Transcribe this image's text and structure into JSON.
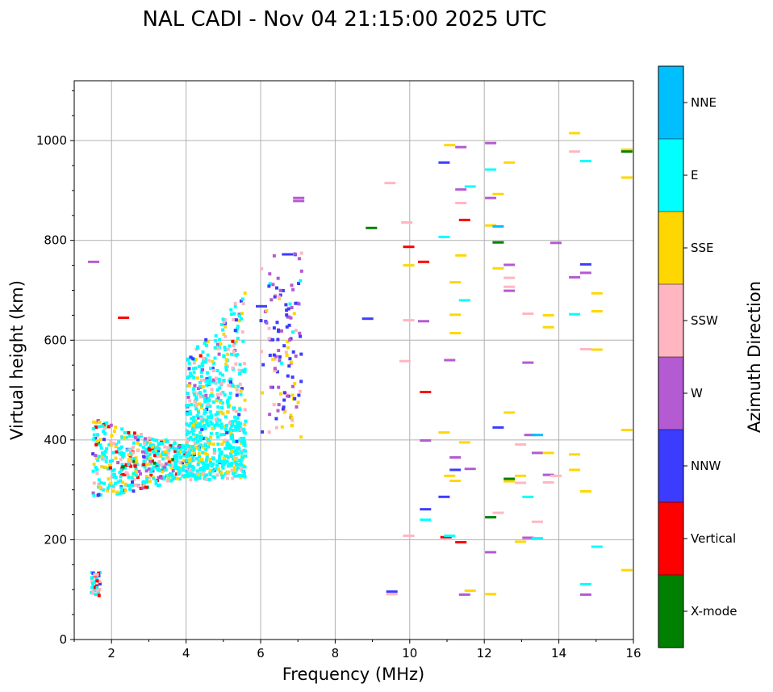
{
  "chart_data": {
    "type": "scatter",
    "title": "NAL CADI - Nov 04 21:15:00 2025 UTC",
    "xlabel": "Frequency (MHz)",
    "ylabel": "Virtual height (km)",
    "xlim": [
      1,
      16
    ],
    "ylim": [
      0,
      1120
    ],
    "x_ticks": [
      2,
      4,
      6,
      8,
      10,
      12,
      14,
      16
    ],
    "y_ticks": [
      0,
      200,
      400,
      600,
      800,
      1000
    ],
    "grid": true,
    "colorbar": {
      "label": "Azimuth Direction",
      "categories": [
        {
          "name": "X-mode",
          "color": "#008000"
        },
        {
          "name": "Vertical",
          "color": "#ff0000"
        },
        {
          "name": "NNW",
          "color": "#3c3cff"
        },
        {
          "name": "W",
          "color": "#b45ad2"
        },
        {
          "name": "SSW",
          "color": "#ffb6c1"
        },
        {
          "name": "SSE",
          "color": "#ffd700"
        },
        {
          "name": "E",
          "color": "#00ffff"
        },
        {
          "name": "NNE",
          "color": "#00bfff"
        }
      ]
    },
    "clusters": [
      {
        "name": "low-E",
        "x": [
          1.45,
          1.7
        ],
        "y": [
          88,
          135
        ],
        "count": 40,
        "mix": {
          "Vertical": 3,
          "E": 4,
          "SSW": 3,
          "NNW": 1
        }
      },
      {
        "name": "F-trace-lower",
        "x": [
          1.5,
          4.2
        ],
        "y": [
          265,
          440
        ],
        "count": 520,
        "mix": {
          "E": 10,
          "SSE": 4,
          "SSW": 3,
          "Vertical": 2,
          "W": 1,
          "NNW": 1,
          "X-mode": 0.4
        }
      },
      {
        "name": "F-band",
        "x": [
          4.0,
          5.6
        ],
        "y": [
          320,
          440
        ],
        "count": 380,
        "mix": {
          "E": 12,
          "SSE": 3,
          "SSW": 1,
          "NNW": 0.6
        }
      },
      {
        "name": "F-spread",
        "x": [
          4.0,
          5.6
        ],
        "y": [
          440,
          700
        ],
        "count": 300,
        "mix": {
          "E": 10,
          "SSE": 2,
          "SSW": 3,
          "W": 1,
          "NNW": 1,
          "Vertical": 0.4
        }
      },
      {
        "name": "oblique-6",
        "x": [
          6.0,
          7.1
        ],
        "y": [
          405,
          780
        ],
        "count": 130,
        "mix": {
          "NNW": 6,
          "W": 4,
          "SSE": 1.5,
          "SSW": 1.5,
          "E": 0.5
        }
      }
    ],
    "segments": [
      {
        "x": 1.5,
        "y": 757,
        "color": "W"
      },
      {
        "x": 2.3,
        "y": 645,
        "color": "Vertical"
      },
      {
        "x": 6.0,
        "y": 668,
        "color": "NNW"
      },
      {
        "x": 6.7,
        "y": 772,
        "color": "NNW"
      },
      {
        "x": 7.0,
        "y": 885,
        "color": "W"
      },
      {
        "x": 7.0,
        "y": 879,
        "color": "W"
      },
      {
        "x": 8.95,
        "y": 825,
        "color": "X-mode"
      },
      {
        "x": 8.85,
        "y": 643,
        "color": "NNW"
      },
      {
        "x": 9.45,
        "y": 915,
        "color": "SSW"
      },
      {
        "x": 9.5,
        "y": 96,
        "color": "NNW"
      },
      {
        "x": 9.5,
        "y": 91,
        "color": "SSW"
      },
      {
        "x": 9.9,
        "y": 836,
        "color": "SSW"
      },
      {
        "x": 9.95,
        "y": 787,
        "color": "Vertical"
      },
      {
        "x": 9.95,
        "y": 750,
        "color": "SSE"
      },
      {
        "x": 9.95,
        "y": 640,
        "color": "SSW"
      },
      {
        "x": 9.95,
        "y": 208,
        "color": "SSW"
      },
      {
        "x": 9.85,
        "y": 558,
        "color": "SSW"
      },
      {
        "x": 10.35,
        "y": 757,
        "color": "Vertical"
      },
      {
        "x": 10.35,
        "y": 638,
        "color": "W"
      },
      {
        "x": 10.4,
        "y": 496,
        "color": "Vertical"
      },
      {
        "x": 10.4,
        "y": 399,
        "color": "W"
      },
      {
        "x": 10.4,
        "y": 261,
        "color": "NNW"
      },
      {
        "x": 10.4,
        "y": 240,
        "color": "E"
      },
      {
        "x": 10.9,
        "y": 956,
        "color": "NNW"
      },
      {
        "x": 10.9,
        "y": 807,
        "color": "E"
      },
      {
        "x": 10.9,
        "y": 415,
        "color": "SSE"
      },
      {
        "x": 10.9,
        "y": 286,
        "color": "NNW"
      },
      {
        "x": 10.95,
        "y": 205,
        "color": "Vertical"
      },
      {
        "x": 11.05,
        "y": 991,
        "color": "SSE"
      },
      {
        "x": 11.05,
        "y": 560,
        "color": "W"
      },
      {
        "x": 11.05,
        "y": 328,
        "color": "SSE"
      },
      {
        "x": 11.05,
        "y": 208,
        "color": "E"
      },
      {
        "x": 11.2,
        "y": 716,
        "color": "SSE"
      },
      {
        "x": 11.2,
        "y": 651,
        "color": "SSE"
      },
      {
        "x": 11.2,
        "y": 614,
        "color": "SSE"
      },
      {
        "x": 11.2,
        "y": 365,
        "color": "W"
      },
      {
        "x": 11.2,
        "y": 340,
        "color": "NNW"
      },
      {
        "x": 11.2,
        "y": 318,
        "color": "SSE"
      },
      {
        "x": 11.35,
        "y": 987,
        "color": "W"
      },
      {
        "x": 11.35,
        "y": 902,
        "color": "W"
      },
      {
        "x": 11.35,
        "y": 875,
        "color": "SSW"
      },
      {
        "x": 11.35,
        "y": 770,
        "color": "SSE"
      },
      {
        "x": 11.35,
        "y": 195,
        "color": "Vertical"
      },
      {
        "x": 11.45,
        "y": 841,
        "color": "Vertical"
      },
      {
        "x": 11.45,
        "y": 680,
        "color": "E"
      },
      {
        "x": 11.45,
        "y": 395,
        "color": "SSE"
      },
      {
        "x": 11.45,
        "y": 90,
        "color": "W"
      },
      {
        "x": 11.6,
        "y": 908,
        "color": "E"
      },
      {
        "x": 11.6,
        "y": 342,
        "color": "W"
      },
      {
        "x": 11.6,
        "y": 98,
        "color": "SSE"
      },
      {
        "x": 12.15,
        "y": 995,
        "color": "W"
      },
      {
        "x": 12.15,
        "y": 942,
        "color": "E"
      },
      {
        "x": 12.15,
        "y": 885,
        "color": "W"
      },
      {
        "x": 12.15,
        "y": 830,
        "color": "SSE"
      },
      {
        "x": 12.15,
        "y": 245,
        "color": "X-mode"
      },
      {
        "x": 12.15,
        "y": 175,
        "color": "W"
      },
      {
        "x": 12.15,
        "y": 91,
        "color": "SSE"
      },
      {
        "x": 12.35,
        "y": 893,
        "color": "SSE"
      },
      {
        "x": 12.35,
        "y": 828,
        "color": "NNE"
      },
      {
        "x": 12.35,
        "y": 796,
        "color": "X-mode"
      },
      {
        "x": 12.35,
        "y": 744,
        "color": "SSE"
      },
      {
        "x": 12.35,
        "y": 425,
        "color": "NNW"
      },
      {
        "x": 12.35,
        "y": 254,
        "color": "SSW"
      },
      {
        "x": 12.65,
        "y": 956,
        "color": "SSE"
      },
      {
        "x": 12.65,
        "y": 751,
        "color": "W"
      },
      {
        "x": 12.65,
        "y": 725,
        "color": "SSW"
      },
      {
        "x": 12.65,
        "y": 707,
        "color": "SSW"
      },
      {
        "x": 12.65,
        "y": 699,
        "color": "W"
      },
      {
        "x": 12.65,
        "y": 455,
        "color": "SSE"
      },
      {
        "x": 12.65,
        "y": 322,
        "color": "X-mode"
      },
      {
        "x": 12.65,
        "y": 317,
        "color": "SSE"
      },
      {
        "x": 12.95,
        "y": 391,
        "color": "SSW"
      },
      {
        "x": 12.95,
        "y": 328,
        "color": "SSE"
      },
      {
        "x": 12.95,
        "y": 314,
        "color": "SSW"
      },
      {
        "x": 12.95,
        "y": 196,
        "color": "SSE"
      },
      {
        "x": 13.15,
        "y": 653,
        "color": "SSW"
      },
      {
        "x": 13.15,
        "y": 555,
        "color": "W"
      },
      {
        "x": 13.2,
        "y": 410,
        "color": "W"
      },
      {
        "x": 13.15,
        "y": 286,
        "color": "E"
      },
      {
        "x": 13.15,
        "y": 204,
        "color": "W"
      },
      {
        "x": 13.4,
        "y": 410,
        "color": "NNE"
      },
      {
        "x": 13.4,
        "y": 374,
        "color": "W"
      },
      {
        "x": 13.4,
        "y": 236,
        "color": "SSW"
      },
      {
        "x": 13.4,
        "y": 203,
        "color": "E"
      },
      {
        "x": 13.7,
        "y": 650,
        "color": "SSE"
      },
      {
        "x": 13.7,
        "y": 626,
        "color": "SSE"
      },
      {
        "x": 13.7,
        "y": 374,
        "color": "SSE"
      },
      {
        "x": 13.7,
        "y": 330,
        "color": "W"
      },
      {
        "x": 13.7,
        "y": 315,
        "color": "SSW"
      },
      {
        "x": 13.9,
        "y": 795,
        "color": "W"
      },
      {
        "x": 13.9,
        "y": 328,
        "color": "SSW"
      },
      {
        "x": 14.4,
        "y": 1015,
        "color": "SSE"
      },
      {
        "x": 14.4,
        "y": 978,
        "color": "SSW"
      },
      {
        "x": 14.4,
        "y": 726,
        "color": "W"
      },
      {
        "x": 14.4,
        "y": 652,
        "color": "E"
      },
      {
        "x": 14.4,
        "y": 371,
        "color": "SSE"
      },
      {
        "x": 14.4,
        "y": 340,
        "color": "SSE"
      },
      {
        "x": 14.7,
        "y": 959,
        "color": "E"
      },
      {
        "x": 14.7,
        "y": 752,
        "color": "NNW"
      },
      {
        "x": 14.7,
        "y": 735,
        "color": "W"
      },
      {
        "x": 14.7,
        "y": 582,
        "color": "SSW"
      },
      {
        "x": 14.7,
        "y": 297,
        "color": "SSE"
      },
      {
        "x": 14.7,
        "y": 111,
        "color": "E"
      },
      {
        "x": 14.7,
        "y": 90,
        "color": "W"
      },
      {
        "x": 15.0,
        "y": 694,
        "color": "SSE"
      },
      {
        "x": 15.0,
        "y": 658,
        "color": "SSE"
      },
      {
        "x": 15.0,
        "y": 581,
        "color": "SSE"
      },
      {
        "x": 15.0,
        "y": 186,
        "color": "E"
      },
      {
        "x": 15.8,
        "y": 982,
        "color": "SSE"
      },
      {
        "x": 15.8,
        "y": 978,
        "color": "X-mode"
      },
      {
        "x": 15.8,
        "y": 926,
        "color": "SSE"
      },
      {
        "x": 15.8,
        "y": 420,
        "color": "SSE"
      },
      {
        "x": 15.8,
        "y": 139,
        "color": "SSE"
      }
    ]
  }
}
